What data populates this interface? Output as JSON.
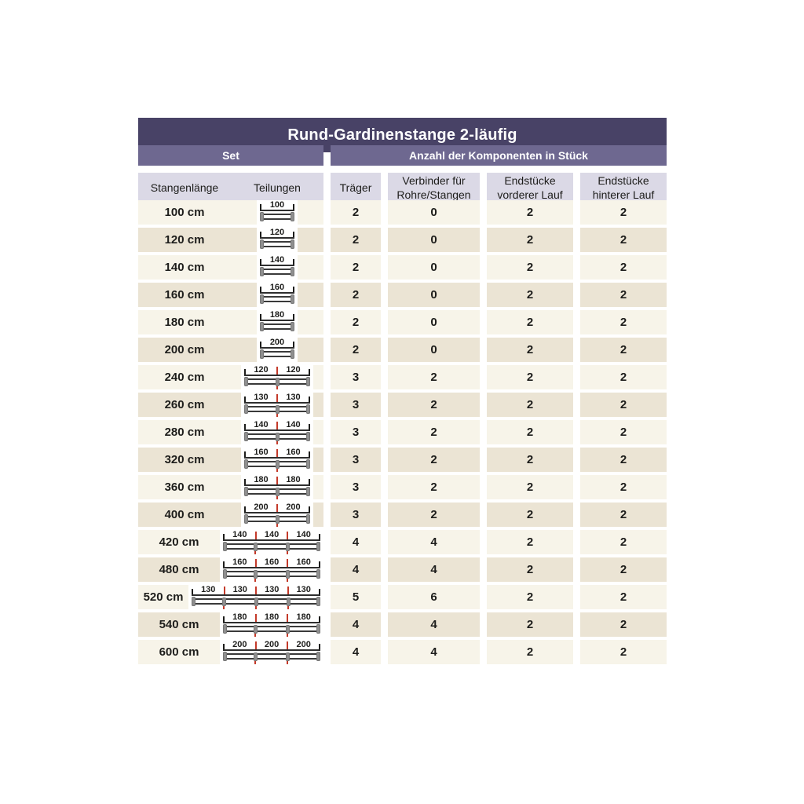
{
  "title": "Rund-Gardinenstange 2-läufig",
  "section_headers": {
    "set": "Set",
    "components": "Anzahl der Komponenten in Stück"
  },
  "columns": {
    "stangenlaenge": "Stangenlänge",
    "teilungen": "Teilungen",
    "traeger": "Träger",
    "verbinder": [
      "Verbinder für",
      "Rohre/Stangen"
    ],
    "endstuecke_vorderer": [
      "Endstücke",
      "vorderer Lauf"
    ],
    "endstuecke_hinterer": [
      "Endstücke",
      "hinterer Lauf"
    ]
  },
  "rows": [
    {
      "length": "100 cm",
      "segments": [
        "100"
      ],
      "traeger": "2",
      "verbinder": "0",
      "endstuecke_vorderer": "2",
      "endstuecke_hinterer": "2"
    },
    {
      "length": "120 cm",
      "segments": [
        "120"
      ],
      "traeger": "2",
      "verbinder": "0",
      "endstuecke_vorderer": "2",
      "endstuecke_hinterer": "2"
    },
    {
      "length": "140 cm",
      "segments": [
        "140"
      ],
      "traeger": "2",
      "verbinder": "0",
      "endstuecke_vorderer": "2",
      "endstuecke_hinterer": "2"
    },
    {
      "length": "160 cm",
      "segments": [
        "160"
      ],
      "traeger": "2",
      "verbinder": "0",
      "endstuecke_vorderer": "2",
      "endstuecke_hinterer": "2"
    },
    {
      "length": "180 cm",
      "segments": [
        "180"
      ],
      "traeger": "2",
      "verbinder": "0",
      "endstuecke_vorderer": "2",
      "endstuecke_hinterer": "2"
    },
    {
      "length": "200 cm",
      "segments": [
        "200"
      ],
      "traeger": "2",
      "verbinder": "0",
      "endstuecke_vorderer": "2",
      "endstuecke_hinterer": "2"
    },
    {
      "length": "240 cm",
      "segments": [
        "120",
        "120"
      ],
      "traeger": "3",
      "verbinder": "2",
      "endstuecke_vorderer": "2",
      "endstuecke_hinterer": "2"
    },
    {
      "length": "260 cm",
      "segments": [
        "130",
        "130"
      ],
      "traeger": "3",
      "verbinder": "2",
      "endstuecke_vorderer": "2",
      "endstuecke_hinterer": "2"
    },
    {
      "length": "280 cm",
      "segments": [
        "140",
        "140"
      ],
      "traeger": "3",
      "verbinder": "2",
      "endstuecke_vorderer": "2",
      "endstuecke_hinterer": "2"
    },
    {
      "length": "320 cm",
      "segments": [
        "160",
        "160"
      ],
      "traeger": "3",
      "verbinder": "2",
      "endstuecke_vorderer": "2",
      "endstuecke_hinterer": "2"
    },
    {
      "length": "360 cm",
      "segments": [
        "180",
        "180"
      ],
      "traeger": "3",
      "verbinder": "2",
      "endstuecke_vorderer": "2",
      "endstuecke_hinterer": "2"
    },
    {
      "length": "400 cm",
      "segments": [
        "200",
        "200"
      ],
      "traeger": "3",
      "verbinder": "2",
      "endstuecke_vorderer": "2",
      "endstuecke_hinterer": "2"
    },
    {
      "length": "420 cm",
      "segments": [
        "140",
        "140",
        "140"
      ],
      "traeger": "4",
      "verbinder": "4",
      "endstuecke_vorderer": "2",
      "endstuecke_hinterer": "2"
    },
    {
      "length": "480 cm",
      "segments": [
        "160",
        "160",
        "160"
      ],
      "traeger": "4",
      "verbinder": "4",
      "endstuecke_vorderer": "2",
      "endstuecke_hinterer": "2"
    },
    {
      "length": "520 cm",
      "segments": [
        "130",
        "130",
        "130",
        "130"
      ],
      "traeger": "5",
      "verbinder": "6",
      "endstuecke_vorderer": "2",
      "endstuecke_hinterer": "2"
    },
    {
      "length": "540 cm",
      "segments": [
        "180",
        "180",
        "180"
      ],
      "traeger": "4",
      "verbinder": "4",
      "endstuecke_vorderer": "2",
      "endstuecke_hinterer": "2"
    },
    {
      "length": "600 cm",
      "segments": [
        "200",
        "200",
        "200"
      ],
      "traeger": "4",
      "verbinder": "4",
      "endstuecke_vorderer": "2",
      "endstuecke_hinterer": "2"
    }
  ],
  "colors": {
    "title_bar_bg": "#484266",
    "section_bar_bg": "#6e6890",
    "column_header_bg": "#dbd9e6",
    "row_light_bg": "#f7f4e9",
    "row_dark_bg": "#ebe4d4",
    "header_text": "#ffffff",
    "body_text": "#1d1d1b",
    "joint_marker_red": "#c43a2a",
    "rod_cap_gray": "#8f8f8f",
    "rod_line": "#3a3a3a"
  }
}
